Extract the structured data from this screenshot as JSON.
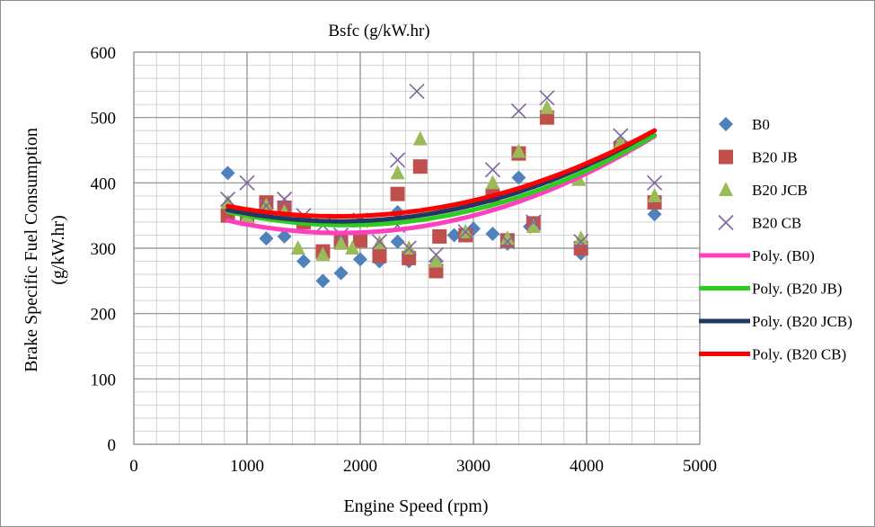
{
  "chart_data": {
    "type": "scatter",
    "title": "Bsfc (g/kW.hr)",
    "xlabel": "Engine Speed (rpm)",
    "ylabel": [
      "Brake Specific Fuel Consumption",
      "(g/kW.hr)"
    ],
    "xlim": [
      0,
      5000
    ],
    "ylim": [
      0,
      600
    ],
    "x_ticks": [
      "0",
      "1000",
      "2000",
      "3000",
      "4000",
      "5000"
    ],
    "y_ticks": [
      "0",
      "100",
      "200",
      "300",
      "400",
      "500",
      "600"
    ],
    "grid": true,
    "legend_position": "right",
    "series": [
      {
        "name": "B0",
        "marker": "diamond",
        "color": "#4f81bd",
        "points": [
          [
            830,
            415
          ],
          [
            1000,
            350
          ],
          [
            1170,
            315
          ],
          [
            1330,
            318
          ],
          [
            1500,
            280
          ],
          [
            1670,
            250
          ],
          [
            1830,
            262
          ],
          [
            2000,
            283
          ],
          [
            2170,
            280
          ],
          [
            2330,
            355
          ],
          [
            2330,
            310
          ],
          [
            2430,
            280
          ],
          [
            2670,
            280
          ],
          [
            2830,
            320
          ],
          [
            3000,
            330
          ],
          [
            3170,
            322
          ],
          [
            3300,
            307
          ],
          [
            3400,
            408
          ],
          [
            3500,
            333
          ],
          [
            3650,
            505
          ],
          [
            3950,
            292
          ],
          [
            4300,
            455
          ],
          [
            4600,
            352
          ]
        ]
      },
      {
        "name": "B20 JB",
        "marker": "square",
        "color": "#c0504d",
        "points": [
          [
            830,
            350
          ],
          [
            1000,
            345
          ],
          [
            1170,
            370
          ],
          [
            1330,
            362
          ],
          [
            1500,
            340
          ],
          [
            1670,
            295
          ],
          [
            1830,
            310
          ],
          [
            2000,
            312
          ],
          [
            2170,
            288
          ],
          [
            2330,
            383
          ],
          [
            2430,
            285
          ],
          [
            2530,
            425
          ],
          [
            2670,
            265
          ],
          [
            2700,
            318
          ],
          [
            2930,
            320
          ],
          [
            3170,
            380
          ],
          [
            3300,
            312
          ],
          [
            3400,
            445
          ],
          [
            3530,
            338
          ],
          [
            3650,
            500
          ],
          [
            3950,
            300
          ],
          [
            4300,
            453
          ],
          [
            4600,
            370
          ]
        ]
      },
      {
        "name": "B20 JCB",
        "marker": "triangle",
        "color": "#9bbb59",
        "points": [
          [
            830,
            370
          ],
          [
            1000,
            348
          ],
          [
            1170,
            365
          ],
          [
            1330,
            355
          ],
          [
            1450,
            300
          ],
          [
            1670,
            290
          ],
          [
            1830,
            307
          ],
          [
            1930,
            300
          ],
          [
            2170,
            308
          ],
          [
            2330,
            415
          ],
          [
            2430,
            300
          ],
          [
            2530,
            467
          ],
          [
            2670,
            280
          ],
          [
            2930,
            325
          ],
          [
            3170,
            400
          ],
          [
            3300,
            315
          ],
          [
            3400,
            448
          ],
          [
            3530,
            333
          ],
          [
            3650,
            515
          ],
          [
            3930,
            405
          ],
          [
            3950,
            315
          ],
          [
            4300,
            462
          ],
          [
            4600,
            380
          ]
        ]
      },
      {
        "name": "B20 CB",
        "marker": "x",
        "color": "#8064a2",
        "points": [
          [
            830,
            375
          ],
          [
            1000,
            400
          ],
          [
            1170,
            365
          ],
          [
            1330,
            375
          ],
          [
            1500,
            350
          ],
          [
            1670,
            335
          ],
          [
            1830,
            320
          ],
          [
            2000,
            343
          ],
          [
            2170,
            310
          ],
          [
            2330,
            435
          ],
          [
            2330,
            335
          ],
          [
            2430,
            300
          ],
          [
            2500,
            540
          ],
          [
            2670,
            290
          ],
          [
            2930,
            325
          ],
          [
            3170,
            420
          ],
          [
            3300,
            310
          ],
          [
            3400,
            510
          ],
          [
            3530,
            340
          ],
          [
            3650,
            530
          ],
          [
            3950,
            310
          ],
          [
            4300,
            472
          ],
          [
            4600,
            400
          ]
        ]
      }
    ],
    "trendlines": [
      {
        "name": "Poly. (B0)",
        "color": "#ff3fbf",
        "coefficients": [
          387.2,
          -0.07,
          1.92e-05
        ],
        "range": [
          830,
          4600
        ]
      },
      {
        "name": "Poly. (B20 JB)",
        "color": "#2ecc1f",
        "coefficients": [
          401.2,
          -0.07,
          1.86e-05
        ],
        "range": [
          830,
          4600
        ]
      },
      {
        "name": "Poly. (B20 JCB)",
        "color": "#1f3864",
        "coefficients": [
          400.2,
          -0.065,
          1.79e-05
        ],
        "range": [
          830,
          4600
        ]
      },
      {
        "name": "Poly. (B20 CB)",
        "color": "#ff0000",
        "coefficients": [
          402.7,
          -0.06,
          1.67e-05
        ],
        "range": [
          830,
          4600
        ]
      }
    ]
  }
}
